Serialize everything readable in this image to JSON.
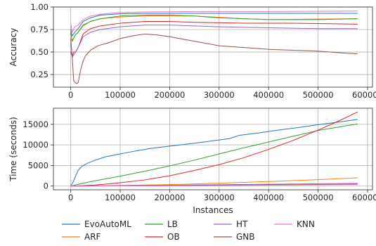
{
  "chart_data": [
    {
      "type": "line",
      "xlabel": "",
      "ylabel": "Accuracy",
      "xlim": [
        -35000,
        610000
      ],
      "ylim": [
        0.11,
        1.0
      ],
      "xticks": [
        0,
        100000,
        200000,
        300000,
        400000,
        500000,
        600000
      ],
      "xtick_labels": [
        "0",
        "100000",
        "200000",
        "300000",
        "400000",
        "500000",
        "600000"
      ],
      "yticks": [
        0.25,
        0.5,
        0.75,
        1.0
      ],
      "ytick_labels": [
        "0.25",
        "0.50",
        "0.75",
        "1.00"
      ],
      "grid": true,
      "series": [
        {
          "name": "EvoAutoML",
          "color": "#1f77b4",
          "x": [
            0,
            3000,
            8000,
            15000,
            25000,
            40000,
            60000,
            100000,
            150000,
            250000,
            400000,
            580000
          ],
          "y": [
            0.75,
            0.68,
            0.72,
            0.76,
            0.84,
            0.88,
            0.91,
            0.925,
            0.93,
            0.93,
            0.93,
            0.93
          ]
        },
        {
          "name": "ARF",
          "color": "#ff7f0e",
          "x": [
            0,
            3000,
            8000,
            15000,
            25000,
            40000,
            60000,
            100000,
            150000,
            250000,
            350000,
            400000,
            580000
          ],
          "y": [
            0.7,
            0.62,
            0.68,
            0.72,
            0.79,
            0.84,
            0.87,
            0.89,
            0.9,
            0.9,
            0.87,
            0.86,
            0.87
          ]
        },
        {
          "name": "LB",
          "color": "#2ca02c",
          "x": [
            0,
            3000,
            8000,
            15000,
            25000,
            40000,
            60000,
            100000,
            150000,
            200000,
            250000,
            300000,
            400000,
            500000,
            580000
          ],
          "y": [
            0.72,
            0.62,
            0.68,
            0.72,
            0.8,
            0.84,
            0.87,
            0.9,
            0.91,
            0.91,
            0.9,
            0.88,
            0.86,
            0.86,
            0.87
          ]
        },
        {
          "name": "OB",
          "color": "#d62728",
          "x": [
            0,
            3000,
            6000,
            10000,
            15000,
            25000,
            40000,
            60000,
            100000,
            150000,
            200000,
            250000,
            350000,
            450000,
            580000
          ],
          "y": [
            0.65,
            0.45,
            0.5,
            0.5,
            0.55,
            0.7,
            0.76,
            0.79,
            0.82,
            0.84,
            0.84,
            0.83,
            0.82,
            0.82,
            0.81
          ]
        },
        {
          "name": "HT",
          "color": "#9467bd",
          "x": [
            0,
            3000,
            6000,
            10000,
            15000,
            25000,
            40000,
            60000,
            100000,
            150000,
            200000,
            300000,
            400000,
            500000,
            580000
          ],
          "y": [
            0.6,
            0.44,
            0.47,
            0.5,
            0.55,
            0.67,
            0.72,
            0.75,
            0.78,
            0.8,
            0.8,
            0.78,
            0.77,
            0.76,
            0.76
          ]
        },
        {
          "name": "GNB",
          "color": "#8c564b",
          "x": [
            0,
            3000,
            6000,
            9000,
            12000,
            15000,
            20000,
            25000,
            30000,
            40000,
            55000,
            75000,
            100000,
            125000,
            150000,
            175000,
            200000,
            250000,
            300000,
            350000,
            400000,
            450000,
            500000,
            550000,
            580000
          ],
          "y": [
            0.5,
            0.45,
            0.18,
            0.16,
            0.15,
            0.16,
            0.3,
            0.4,
            0.46,
            0.52,
            0.57,
            0.6,
            0.65,
            0.68,
            0.7,
            0.69,
            0.67,
            0.62,
            0.57,
            0.55,
            0.53,
            0.52,
            0.51,
            0.49,
            0.48
          ]
        },
        {
          "name": "KNN",
          "color": "#e377c2",
          "x": [
            0,
            3000,
            8000,
            15000,
            25000,
            40000,
            60000,
            100000,
            150000,
            250000,
            400000,
            580000
          ],
          "y": [
            0.82,
            0.72,
            0.78,
            0.8,
            0.86,
            0.9,
            0.92,
            0.94,
            0.945,
            0.95,
            0.95,
            0.955
          ]
        }
      ]
    },
    {
      "type": "line",
      "xlabel": "Instances",
      "ylabel": "Time (seconds)",
      "xlim": [
        -35000,
        610000
      ],
      "ylim": [
        -900,
        18900
      ],
      "xticks": [
        0,
        100000,
        200000,
        300000,
        400000,
        500000,
        600000
      ],
      "xtick_labels": [
        "0",
        "100000",
        "200000",
        "300000",
        "400000",
        "500000",
        "600000"
      ],
      "yticks": [
        0,
        5000,
        10000,
        15000
      ],
      "ytick_labels": [
        "0",
        "5000",
        "10000",
        "15000"
      ],
      "grid": true,
      "series": [
        {
          "name": "EvoAutoML",
          "color": "#1f77b4",
          "x": [
            0,
            5000,
            10000,
            15000,
            20000,
            25000,
            35000,
            50000,
            70000,
            100000,
            130000,
            160000,
            200000,
            250000,
            300000,
            320000,
            340000,
            380000,
            420000,
            460000,
            500000,
            540000,
            580000
          ],
          "y": [
            0,
            1000,
            2500,
            3800,
            4500,
            5000,
            5600,
            6300,
            7100,
            7800,
            8500,
            9100,
            9700,
            10400,
            11200,
            11500,
            12300,
            12900,
            13600,
            14200,
            14900,
            15500,
            16200
          ]
        },
        {
          "name": "ARF",
          "color": "#ff7f0e",
          "x": [
            0,
            100000,
            200000,
            300000,
            400000,
            500000,
            580000
          ],
          "y": [
            0,
            150,
            350,
            700,
            1100,
            1550,
            2000
          ]
        },
        {
          "name": "LB",
          "color": "#2ca02c",
          "x": [
            0,
            25000,
            50000,
            100000,
            150000,
            200000,
            250000,
            300000,
            350000,
            400000,
            450000,
            500000,
            580000
          ],
          "y": [
            0,
            700,
            1300,
            2400,
            3600,
            4900,
            6300,
            7800,
            9300,
            10700,
            12100,
            13500,
            15100
          ]
        },
        {
          "name": "OB",
          "color": "#d62728",
          "x": [
            0,
            50000,
            100000,
            150000,
            200000,
            250000,
            300000,
            350000,
            400000,
            450000,
            500000,
            540000,
            580000
          ],
          "y": [
            0,
            250,
            800,
            1500,
            2500,
            3800,
            5200,
            6900,
            8900,
            11100,
            13600,
            15700,
            18000
          ]
        },
        {
          "name": "HT",
          "color": "#9467bd",
          "x": [
            0,
            200000,
            400000,
            580000
          ],
          "y": [
            0,
            200,
            450,
            650
          ]
        },
        {
          "name": "GNB",
          "color": "#8c564b",
          "x": [
            0,
            200000,
            400000,
            580000
          ],
          "y": [
            0,
            130,
            300,
            450
          ]
        },
        {
          "name": "KNN",
          "color": "#e377c2",
          "x": [
            0,
            200000,
            400000,
            580000
          ],
          "y": [
            0,
            100,
            220,
            350
          ]
        }
      ]
    }
  ],
  "legend": {
    "placement": "bottom",
    "entries": [
      {
        "label": "EvoAutoML",
        "color": "#1f77b4"
      },
      {
        "label": "ARF",
        "color": "#ff7f0e"
      },
      {
        "label": "LB",
        "color": "#2ca02c"
      },
      {
        "label": "OB",
        "color": "#d62728"
      },
      {
        "label": "HT",
        "color": "#9467bd"
      },
      {
        "label": "GNB",
        "color": "#8c564b"
      },
      {
        "label": "KNN",
        "color": "#e377c2"
      }
    ]
  }
}
